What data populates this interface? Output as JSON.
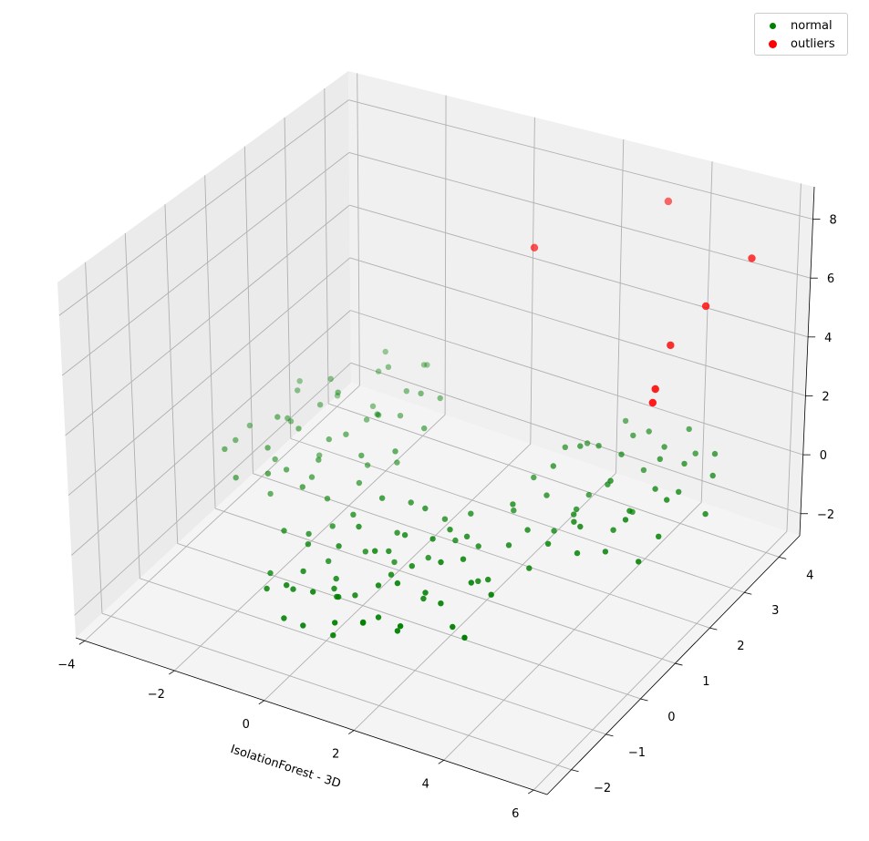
{
  "chart_data": {
    "type": "scatter",
    "projection": "3d",
    "title": "",
    "xlabel": "IsolationForest - 3D",
    "ylabel": "",
    "zlabel": "",
    "xlim": [
      -4.2,
      6.3
    ],
    "ylim": [
      -2.7,
      4.6
    ],
    "zlim": [
      -2.75,
      9.1
    ],
    "xticks": [
      "-4",
      "-2",
      "0",
      "2",
      "4",
      "6"
    ],
    "yticks": [
      "-2",
      "-1",
      "0",
      "1",
      "2",
      "3",
      "4"
    ],
    "zticks": [
      "-2",
      "0",
      "2",
      "4",
      "6",
      "8"
    ],
    "grid": true,
    "legend_position": "top-right",
    "series": [
      {
        "name": "normal",
        "color": "#008000",
        "points": [
          [
            1.0,
            -0.5,
            0.1
          ],
          [
            0.4,
            -1.2,
            -0.3
          ],
          [
            1.8,
            0.2,
            0.4
          ],
          [
            0.9,
            -1.8,
            0.0
          ],
          [
            2.1,
            -0.9,
            -0.5
          ],
          [
            0.2,
            0.3,
            0.6
          ],
          [
            1.5,
            -1.4,
            0.2
          ],
          [
            -0.1,
            -0.8,
            -0.4
          ],
          [
            1.2,
            0.8,
            -0.2
          ],
          [
            2.5,
            -0.3,
            0.3
          ],
          [
            0.7,
            -2.2,
            0.5
          ],
          [
            1.9,
            -1.9,
            -0.1
          ],
          [
            0.0,
            -1.6,
            0.2
          ],
          [
            1.4,
            0.1,
            -0.6
          ],
          [
            2.8,
            -1.3,
            0.1
          ],
          [
            0.6,
            0.6,
            0.3
          ],
          [
            -0.5,
            -0.2,
            -0.1
          ],
          [
            1.1,
            -1.0,
            0.7
          ],
          [
            2.2,
            0.5,
            -0.3
          ],
          [
            0.3,
            -2.5,
            -0.2
          ],
          [
            1.6,
            -0.6,
            0.0
          ],
          [
            0.8,
            -0.1,
            -0.8
          ],
          [
            2.0,
            -1.5,
            0.6
          ],
          [
            -0.3,
            -1.1,
            0.4
          ],
          [
            1.3,
            -2.4,
            -0.4
          ],
          [
            3.0,
            -0.7,
            0.2
          ],
          [
            0.5,
            -0.7,
            0.9
          ],
          [
            1.7,
            0.9,
            0.1
          ],
          [
            2.4,
            -2.0,
            -0.2
          ],
          [
            -0.7,
            -0.6,
            0.0
          ],
          [
            0.9,
            -1.3,
            -0.5
          ],
          [
            1.2,
            -0.3,
            0.5
          ],
          [
            2.6,
            0.0,
            -0.7
          ],
          [
            0.1,
            -2.0,
            0.1
          ],
          [
            1.5,
            -2.6,
            0.3
          ],
          [
            3.3,
            -1.6,
            -0.1
          ],
          [
            -0.2,
            0.0,
            0.2
          ],
          [
            0.6,
            -1.5,
            -0.2
          ],
          [
            1.9,
            -0.4,
            0.8
          ],
          [
            2.3,
            -1.1,
            0.0
          ],
          [
            0.4,
            -0.4,
            -0.3
          ],
          [
            1.0,
            0.5,
            0.4
          ],
          [
            -0.9,
            -1.4,
            -0.5
          ],
          [
            2.7,
            -2.3,
            0.4
          ],
          [
            1.4,
            -1.7,
            -0.7
          ],
          [
            0.2,
            -2.3,
            0.6
          ],
          [
            3.6,
            -0.9,
            0.3
          ],
          [
            1.8,
            -2.2,
            0.0
          ],
          [
            0.7,
            0.1,
            -0.1
          ],
          [
            2.1,
            0.3,
            0.2
          ],
          [
            -0.4,
            -2.1,
            0.0
          ],
          [
            1.1,
            -2.0,
            0.3
          ],
          [
            2.9,
            -0.1,
            -0.4
          ],
          [
            0.3,
            -1.0,
            0.5
          ],
          [
            1.6,
            0.6,
            -0.5
          ],
          [
            2.4,
            -0.8,
            0.7
          ],
          [
            0.8,
            -2.6,
            -0.1
          ],
          [
            3.8,
            -1.9,
            0.1
          ],
          [
            -1.0,
            -0.9,
            0.3
          ],
          [
            1.3,
            -0.8,
            -0.2
          ],
          [
            -2.0,
            1.5,
            0.2
          ],
          [
            -2.8,
            1.0,
            -0.3
          ],
          [
            -1.5,
            2.2,
            0.5
          ],
          [
            -3.2,
            1.8,
            0.0
          ],
          [
            -2.4,
            0.4,
            -0.6
          ],
          [
            -1.1,
            1.3,
            0.3
          ],
          [
            -2.9,
            2.6,
            0.6
          ],
          [
            -1.8,
            0.8,
            -0.2
          ],
          [
            -3.6,
            0.9,
            0.1
          ],
          [
            -2.2,
            2.9,
            -0.4
          ],
          [
            -1.3,
            2.0,
            0.8
          ],
          [
            -2.6,
            1.4,
            0.4
          ],
          [
            -3.0,
            0.2,
            -0.1
          ],
          [
            -1.6,
            3.1,
            0.2
          ],
          [
            -2.1,
            0.0,
            0.7
          ],
          [
            -0.8,
            1.9,
            -0.5
          ],
          [
            -3.4,
            2.3,
            0.3
          ],
          [
            -1.9,
            1.1,
            0.0
          ],
          [
            -2.5,
            3.4,
            0.1
          ],
          [
            -1.2,
            0.5,
            -0.3
          ],
          [
            -3.8,
            1.5,
            -0.2
          ],
          [
            -2.3,
            2.1,
            1.0
          ],
          [
            -1.4,
            2.7,
            -0.1
          ],
          [
            -2.7,
            0.7,
            0.5
          ],
          [
            -0.6,
            2.4,
            0.2
          ],
          [
            -3.1,
            3.0,
            -0.6
          ],
          [
            -1.7,
            1.6,
            0.4
          ],
          [
            -2.0,
            2.5,
            -0.3
          ],
          [
            -2.9,
            1.2,
            0.9
          ],
          [
            -1.0,
            3.3,
            0.0
          ],
          [
            -3.5,
            0.5,
            0.3
          ],
          [
            -1.8,
            3.8,
            0.2
          ],
          [
            -2.4,
            1.7,
            -0.8
          ],
          [
            -1.1,
            2.9,
            0.6
          ],
          [
            -3.3,
            2.0,
            -0.4
          ],
          [
            -2.2,
            0.6,
            0.1
          ],
          [
            -0.9,
            1.0,
            -0.2
          ],
          [
            -2.6,
            3.7,
            0.4
          ],
          [
            -1.5,
            0.2,
            0.3
          ],
          [
            -3.7,
            2.7,
            0.0
          ],
          [
            -2.1,
            3.2,
            0.7
          ],
          [
            -1.3,
            1.7,
            -0.6
          ],
          [
            -2.8,
            2.2,
            0.2
          ],
          [
            -1.9,
            4.0,
            -0.1
          ],
          [
            -0.5,
            1.5,
            0.5
          ],
          [
            3.5,
            2.5,
            0.1
          ],
          [
            4.2,
            1.8,
            -0.3
          ],
          [
            2.8,
            3.1,
            0.4
          ],
          [
            4.8,
            2.9,
            0.0
          ],
          [
            3.1,
            1.5,
            -0.5
          ],
          [
            3.9,
            3.6,
            0.3
          ],
          [
            2.5,
            2.2,
            0.6
          ],
          [
            4.5,
            1.2,
            -0.2
          ],
          [
            3.3,
            3.9,
            0.2
          ],
          [
            5.0,
            2.3,
            0.5
          ],
          [
            2.9,
            1.0,
            0.0
          ],
          [
            4.0,
            2.6,
            -0.7
          ],
          [
            3.7,
            1.3,
            0.3
          ],
          [
            2.3,
            3.4,
            -0.1
          ],
          [
            4.6,
            3.3,
            0.4
          ],
          [
            3.2,
            2.0,
            -0.3
          ],
          [
            5.3,
            1.7,
            0.1
          ],
          [
            2.7,
            2.7,
            0.8
          ],
          [
            4.3,
            4.0,
            -0.2
          ],
          [
            3.6,
            0.7,
            0.2
          ],
          [
            2.1,
            1.6,
            -0.4
          ],
          [
            4.9,
            3.8,
            0.3
          ],
          [
            3.4,
            3.0,
            0.5
          ],
          [
            4.1,
            0.9,
            -0.1
          ],
          [
            2.6,
            4.1,
            0.0
          ],
          [
            3.8,
            2.2,
            0.7
          ],
          [
            5.5,
            2.8,
            -0.3
          ],
          [
            3.0,
            2.6,
            -0.6
          ],
          [
            4.4,
            2.0,
            0.2
          ],
          [
            2.4,
            1.2,
            0.4
          ],
          [
            3.9,
            4.3,
            0.1
          ],
          [
            4.7,
            1.5,
            0.6
          ],
          [
            3.3,
            1.8,
            -0.2
          ],
          [
            2.2,
            2.9,
            0.3
          ],
          [
            5.1,
            3.5,
            0.0
          ],
          [
            3.6,
            3.4,
            -0.4
          ],
          [
            4.0,
            1.1,
            0.5
          ],
          [
            2.8,
            0.6,
            -0.1
          ],
          [
            4.5,
            2.6,
            0.3
          ],
          [
            3.1,
            3.7,
            0.2
          ],
          [
            5.4,
            1.0,
            0.1
          ],
          [
            1.9,
            2.4,
            -0.3
          ],
          [
            4.2,
            3.1,
            0.6
          ],
          [
            3.5,
            0.3,
            -0.2
          ],
          [
            2.6,
            1.9,
            0.0
          ]
        ]
      },
      {
        "name": "outliers",
        "color": "#ff0000",
        "points": [
          [
            5.8,
            3.5,
            7.6
          ],
          [
            5.5,
            2.6,
            6.8
          ],
          [
            5.2,
            2.0,
            6.0
          ],
          [
            5.5,
            1.2,
            5.5
          ],
          [
            5.6,
            1.0,
            5.3
          ],
          [
            2.0,
            2.2,
            7.8
          ],
          [
            3.2,
            4.4,
            7.6
          ]
        ]
      }
    ]
  }
}
